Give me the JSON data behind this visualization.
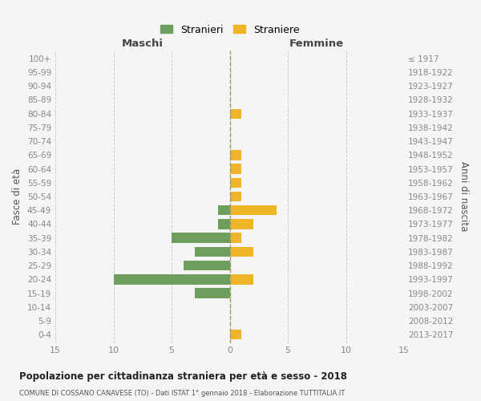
{
  "age_groups": [
    "100+",
    "95-99",
    "90-94",
    "85-89",
    "80-84",
    "75-79",
    "70-74",
    "65-69",
    "60-64",
    "55-59",
    "50-54",
    "45-49",
    "40-44",
    "35-39",
    "30-34",
    "25-29",
    "20-24",
    "15-19",
    "10-14",
    "5-9",
    "0-4"
  ],
  "birth_years": [
    "≤ 1917",
    "1918-1922",
    "1923-1927",
    "1928-1932",
    "1933-1937",
    "1938-1942",
    "1943-1947",
    "1948-1952",
    "1953-1957",
    "1958-1962",
    "1963-1967",
    "1968-1972",
    "1973-1977",
    "1978-1982",
    "1983-1987",
    "1988-1992",
    "1993-1997",
    "1998-2002",
    "2003-2007",
    "2008-2012",
    "2013-2017"
  ],
  "males": [
    0,
    0,
    0,
    0,
    0,
    0,
    0,
    0,
    0,
    0,
    0,
    1,
    1,
    5,
    3,
    4,
    10,
    3,
    0,
    0,
    0
  ],
  "females": [
    0,
    0,
    0,
    0,
    1,
    0,
    0,
    1,
    1,
    1,
    1,
    4,
    2,
    1,
    2,
    0,
    2,
    0,
    0,
    0,
    1
  ],
  "male_color": "#6e9e5e",
  "female_color": "#f0b429",
  "title": "Popolazione per cittadinanza straniera per età e sesso - 2018",
  "subtitle": "COMUNE DI COSSANO CANAVESE (TO) - Dati ISTAT 1° gennaio 2018 - Elaborazione TUTTITALIA.IT",
  "xlabel_left": "Maschi",
  "xlabel_right": "Femmine",
  "ylabel_left": "Fasce di età",
  "ylabel_right": "Anni di nascita",
  "xlim": 15,
  "legend_stranieri": "Stranieri",
  "legend_straniere": "Straniere",
  "background_color": "#f5f5f5",
  "grid_color": "#cccccc",
  "axis_label_color": "#555555",
  "tick_label_color": "#888888"
}
